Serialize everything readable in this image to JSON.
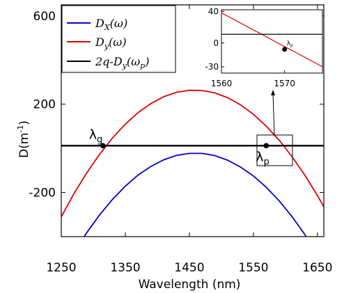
{
  "chart_data": {
    "type": "line",
    "xlabel": "Wavelength (nm)",
    "ylabel": "D(m",
    "ylabel_sup": "-1",
    "ylabel_close": ")",
    "xlim": [
      1250,
      1660
    ],
    "ylim": [
      -400,
      650
    ],
    "xticks": [
      1250,
      1350,
      1450,
      1550,
      1650
    ],
    "yticks": [
      -200,
      200,
      600
    ],
    "grid": false,
    "legend_position": "top-left",
    "series": [
      {
        "name": "D_x(ω)",
        "legend_main": "D",
        "legend_sub": "X",
        "legend_rest": "(ω)",
        "color": "#0000cc",
        "x": [
          1250,
          1270,
          1290,
          1310,
          1330,
          1350,
          1370,
          1390,
          1410,
          1430,
          1450,
          1470,
          1490,
          1510,
          1530,
          1550,
          1570,
          1590,
          1610,
          1630,
          1650,
          1660
        ],
        "y": [
          -572,
          -471,
          -381,
          -301,
          -231,
          -171,
          -121,
          -82,
          -52,
          -32,
          -23,
          -23,
          -33,
          -54,
          -85,
          -125,
          -176,
          -237,
          -308,
          -389,
          -480,
          -530
        ]
      },
      {
        "name": "D_y(ω)",
        "legend_main": "D",
        "legend_sub": "y",
        "legend_rest": "(ω)",
        "color": "#dd0000",
        "x": [
          1250,
          1270,
          1290,
          1310,
          1330,
          1350,
          1370,
          1390,
          1410,
          1430,
          1450,
          1470,
          1490,
          1510,
          1530,
          1550,
          1570,
          1590,
          1610,
          1630,
          1650,
          1660
        ],
        "y": [
          -310,
          -204,
          -110,
          -26,
          47,
          110,
          162,
          203,
          234,
          254,
          263,
          262,
          251,
          229,
          197,
          154,
          101,
          38,
          -36,
          -120,
          -214,
          -265
        ]
      },
      {
        "name": "2q-D_y(ω_p)",
        "legend_main": "2q-D",
        "legend_sub": "y",
        "legend_rest": "(ω",
        "legend_sub2": "p",
        "legend_close": ")",
        "color": "#000000",
        "x": [
          1250,
          1660
        ],
        "y": [
          12,
          12
        ]
      }
    ],
    "points": [
      {
        "label": "λ",
        "sub": "g",
        "x": 1315,
        "y": 12
      },
      {
        "label": "λ",
        "sub": "p",
        "x": 1570,
        "y": 12
      }
    ],
    "inset": {
      "xlim": [
        1560,
        1576
      ],
      "ylim": [
        -38,
        42
      ],
      "xticks": [
        1560,
        1570
      ],
      "yticks": [
        -30,
        0,
        40
      ],
      "red_line": {
        "x": [
          1560,
          1576
        ],
        "y": [
          38,
          -30
        ]
      },
      "black_line_y": 11,
      "point": {
        "label": "λ",
        "sub": "p",
        "x": 1570,
        "y": -8
      }
    }
  }
}
